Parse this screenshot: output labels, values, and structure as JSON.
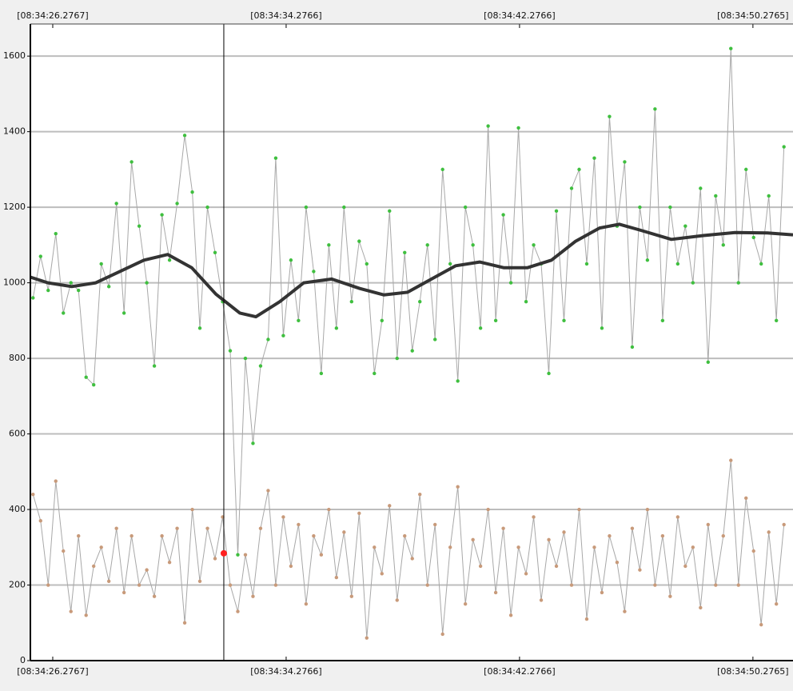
{
  "chart_data": {
    "type": "line",
    "xlim": [
      25.51,
      51.65
    ],
    "ylim": [
      0,
      1685
    ],
    "xticks": [
      {
        "value": 26.2767,
        "label": "[08:34:26.2767]"
      },
      {
        "value": 34.2766,
        "label": "[08:34:34.2766]"
      },
      {
        "value": 42.2766,
        "label": "[08:34:42.2766]"
      },
      {
        "value": 50.2765,
        "label": "[08:34:50.2765]"
      }
    ],
    "yticks": [
      0,
      200,
      400,
      600,
      800,
      1000,
      1200,
      1400,
      1600
    ],
    "grid": true,
    "x": [
      25.6,
      25.86,
      26.12,
      26.38,
      26.64,
      26.9,
      27.16,
      27.42,
      27.68,
      27.94,
      28.2,
      28.46,
      28.72,
      28.98,
      29.24,
      29.5,
      29.76,
      30.02,
      30.28,
      30.54,
      30.8,
      31.06,
      31.32,
      31.58,
      31.84,
      32.1,
      32.36,
      32.62,
      32.88,
      33.14,
      33.4,
      33.66,
      33.92,
      34.18,
      34.44,
      34.7,
      34.96,
      35.22,
      35.48,
      35.74,
      36.0,
      36.26,
      36.52,
      36.78,
      37.04,
      37.3,
      37.56,
      37.82,
      38.08,
      38.34,
      38.6,
      38.86,
      39.12,
      39.38,
      39.64,
      39.9,
      40.16,
      40.42,
      40.68,
      40.94,
      41.2,
      41.46,
      41.72,
      41.98,
      42.24,
      42.5,
      42.76,
      43.02,
      43.28,
      43.54,
      43.8,
      44.06,
      44.32,
      44.58,
      44.84,
      45.1,
      45.36,
      45.62,
      45.88,
      46.14,
      46.4,
      46.66,
      46.92,
      47.18,
      47.44,
      47.7,
      47.96,
      48.22,
      48.48,
      48.74,
      49.0,
      49.26,
      49.52,
      49.78,
      50.04,
      50.3,
      50.56,
      50.82,
      51.08,
      51.34
    ],
    "series": [
      {
        "color": "#3fbf3f",
        "line_color": "#a8a8a8",
        "values": [
          960,
          1070,
          980,
          1130,
          920,
          1000,
          980,
          750,
          730,
          1050,
          990,
          1210,
          920,
          1320,
          1150,
          1000,
          780,
          1180,
          1060,
          1210,
          1390,
          1240,
          880,
          1200,
          1080,
          950,
          820,
          280,
          800,
          575,
          780,
          850,
          1330,
          860,
          1060,
          900,
          1200,
          1030,
          760,
          1100,
          880,
          1200,
          950,
          1110,
          1050,
          760,
          900,
          1190,
          800,
          1080,
          820,
          950,
          1100,
          850,
          1300,
          1050,
          740,
          1200,
          1100,
          880,
          1415,
          900,
          1180,
          1000,
          1410,
          950,
          1100,
          1050,
          760,
          1190,
          900,
          1250,
          1300,
          1050,
          1330,
          880,
          1440,
          1150,
          1320,
          830,
          1200,
          1060,
          1460,
          900,
          1200,
          1050,
          1150,
          1000,
          1250,
          790,
          1230,
          1100,
          1620,
          1000,
          1300,
          1120,
          1050,
          1230,
          900,
          1360
        ]
      },
      {
        "color": "#c89a7a",
        "line_color": "#a8a8a8",
        "values": [
          440,
          370,
          200,
          475,
          290,
          130,
          330,
          120,
          250,
          300,
          210,
          350,
          180,
          330,
          200,
          240,
          170,
          330,
          260,
          350,
          100,
          400,
          210,
          350,
          270,
          380,
          200,
          130,
          280,
          170,
          350,
          450,
          200,
          380,
          250,
          360,
          150,
          330,
          280,
          400,
          220,
          340,
          170,
          390,
          60,
          300,
          230,
          410,
          160,
          330,
          270,
          440,
          200,
          360,
          70,
          300,
          460,
          150,
          320,
          250,
          400,
          180,
          350,
          120,
          300,
          230,
          380,
          160,
          320,
          250,
          340,
          200,
          400,
          110,
          300,
          180,
          330,
          260,
          130,
          350,
          240,
          400,
          200,
          330,
          170,
          380,
          250,
          300,
          140,
          360,
          200,
          330,
          530,
          200,
          430,
          290,
          95,
          340,
          150,
          360
        ]
      },
      {
        "color": "#333333",
        "x": [
          25.51,
          26.11,
          26.93,
          27.75,
          28.58,
          29.4,
          30.22,
          31.04,
          31.87,
          32.69,
          33.24,
          34.06,
          34.88,
          35.84,
          36.8,
          37.62,
          38.44,
          39.26,
          40.09,
          40.91,
          41.73,
          42.55,
          43.37,
          44.2,
          45.02,
          45.7,
          46.39,
          47.48,
          48.58,
          49.67,
          50.77,
          51.65
        ],
        "values": [
          1015,
          1000,
          990,
          1000,
          1030,
          1060,
          1075,
          1040,
          970,
          920,
          910,
          950,
          1000,
          1010,
          985,
          968,
          975,
          1010,
          1045,
          1055,
          1040,
          1040,
          1060,
          1110,
          1145,
          1155,
          1140,
          1115,
          1125,
          1133,
          1132,
          1127
        ]
      }
    ],
    "cursor": {
      "x": 32.14,
      "value": 284,
      "color": "#ff2020"
    }
  }
}
